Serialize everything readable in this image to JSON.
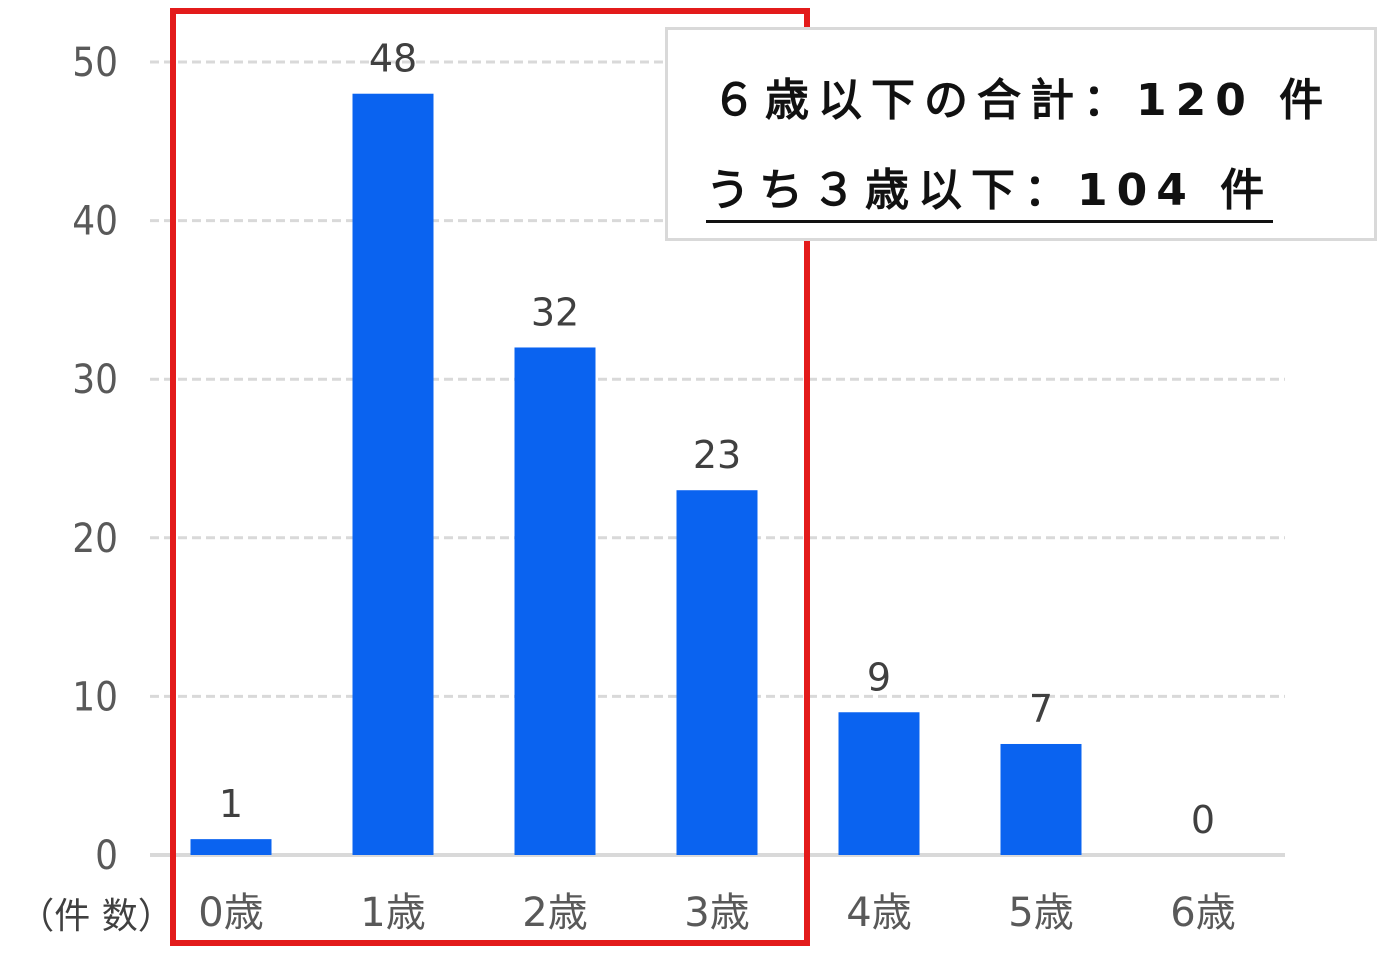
{
  "chart_data": {
    "type": "bar",
    "categories": [
      "0歳",
      "1歳",
      "2歳",
      "3歳",
      "4歳",
      "5歳",
      "6歳"
    ],
    "values": [
      1,
      48,
      32,
      23,
      9,
      7,
      0
    ],
    "data_labels": [
      "1",
      "48",
      "32",
      "23",
      "9",
      "7",
      "0"
    ],
    "y_ticks": [
      "0",
      "10",
      "20",
      "30",
      "40",
      "50"
    ],
    "ylim": [
      0,
      50
    ],
    "ylabel": "（件 数）",
    "grid": true,
    "colors": {
      "bar": "#0a63f0",
      "highlight_frame": "#e31b1b",
      "grid": "#d9d9d9",
      "axis": "#d9d9d9"
    },
    "highlighted_categories": [
      "0歳",
      "1歳",
      "2歳",
      "3歳"
    ],
    "annotation": {
      "line1": "６歳以下の合計：120 件",
      "line2": "うち３歳以下：104 件"
    }
  }
}
